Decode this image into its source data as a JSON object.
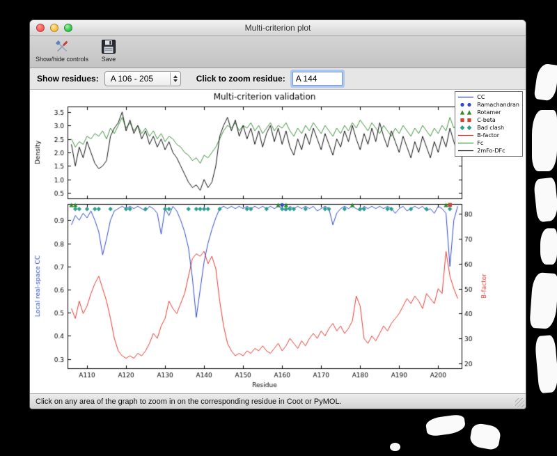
{
  "window": {
    "title": "Multi-criterion plot",
    "toolbar": {
      "show_hide_label": "Show/hide controls",
      "save_label": "Save"
    },
    "controls": {
      "show_residues_label": "Show residues:",
      "residue_range_value": "A 106 - 205",
      "zoom_residue_label": "Click to zoom residue:",
      "zoom_residue_value": "A 144"
    },
    "status_text": "Click on any area of the graph to zoom in on the corresponding residue in Coot or PyMOL."
  },
  "chart_data": {
    "type": "line",
    "title": "Multi-criterion validation",
    "xlabel": "Residue",
    "x_start": 106,
    "x_end": 205,
    "x_ticks": [
      110,
      120,
      130,
      140,
      150,
      160,
      170,
      180,
      190,
      200
    ],
    "x_tick_labels": [
      "A110",
      "A120",
      "A130",
      "A140",
      "A150",
      "A160",
      "A170",
      "A180",
      "A190",
      "A200"
    ],
    "top_plot": {
      "ylabel": "Density",
      "ylim": [
        0.3,
        3.7
      ],
      "yticks": [
        0.5,
        1.0,
        1.5,
        2.0,
        2.5,
        3.0,
        3.5
      ],
      "series": [
        {
          "name": "Fc",
          "color": "#3f8f3f",
          "values": [
            2.5,
            2.2,
            2.4,
            2.3,
            2.6,
            2.5,
            2.7,
            2.6,
            2.8,
            2.5,
            2.9,
            2.7,
            3.0,
            3.3,
            2.9,
            3.1,
            2.8,
            3.0,
            2.7,
            2.9,
            2.6,
            2.8,
            2.5,
            2.7,
            2.4,
            2.6,
            2.5,
            2.3,
            2.2,
            2.0,
            1.9,
            1.7,
            1.8,
            1.6,
            1.9,
            1.8,
            2.0,
            2.2,
            2.5,
            2.8,
            3.0,
            2.9,
            3.1,
            2.8,
            3.0,
            2.9,
            3.1,
            2.8,
            3.0,
            2.7,
            2.9,
            3.1,
            2.8,
            3.0,
            2.9,
            3.1,
            2.8,
            2.6,
            2.9,
            2.7,
            3.0,
            2.8,
            3.1,
            2.9,
            2.7,
            3.0,
            2.8,
            2.6,
            2.9,
            2.7,
            3.0,
            2.8,
            3.1,
            2.9,
            3.2,
            3.0,
            2.8,
            3.1,
            2.9,
            2.7,
            3.0,
            2.8,
            2.6,
            2.9,
            2.7,
            3.0,
            2.8,
            2.6,
            2.9,
            2.7,
            3.0,
            2.8,
            2.6,
            2.9,
            2.7,
            3.0,
            2.8,
            3.3,
            2.9,
            3.1
          ]
        },
        {
          "name": "2mFo-DFc",
          "color": "#111111",
          "values": [
            2.3,
            1.5,
            2.2,
            1.8,
            2.4,
            2.0,
            1.6,
            1.4,
            1.5,
            1.7,
            2.6,
            2.9,
            3.1,
            3.5,
            2.8,
            3.2,
            2.7,
            3.0,
            2.5,
            2.8,
            2.3,
            2.6,
            2.2,
            2.5,
            2.1,
            2.4,
            2.0,
            1.8,
            1.5,
            1.2,
            0.9,
            0.7,
            0.8,
            0.6,
            1.0,
            0.7,
            0.9,
            1.5,
            2.6,
            3.0,
            3.3,
            2.8,
            3.2,
            2.6,
            3.0,
            2.5,
            2.9,
            2.3,
            2.8,
            2.2,
            2.7,
            3.0,
            2.4,
            2.9,
            2.3,
            2.8,
            2.2,
            1.9,
            2.5,
            2.1,
            2.7,
            2.3,
            2.9,
            2.5,
            2.1,
            2.7,
            2.3,
            1.9,
            2.5,
            2.2,
            2.8,
            2.4,
            3.0,
            2.5,
            2.1,
            2.7,
            2.3,
            2.9,
            2.4,
            3.1,
            2.6,
            2.2,
            2.8,
            2.4,
            2.0,
            2.6,
            2.2,
            1.8,
            2.4,
            2.0,
            2.6,
            2.2,
            1.8,
            2.4,
            2.0,
            2.6,
            2.2,
            2.9,
            2.4,
            2.0
          ]
        }
      ]
    },
    "bottom_plot": {
      "ylabel_left": "Local real-space CC",
      "ylabel_right": "B-factor",
      "ylim_left": [
        0.26,
        0.97
      ],
      "yticks_left": [
        0.3,
        0.4,
        0.5,
        0.6,
        0.7,
        0.8,
        0.9
      ],
      "ylim_right": [
        18,
        84
      ],
      "yticks_right": [
        20,
        30,
        40,
        50,
        60,
        70,
        80
      ],
      "series": [
        {
          "name": "B-factor",
          "axis": "right",
          "color": "#dd3b33",
          "values": [
            42,
            38,
            45,
            40,
            43,
            48,
            52,
            55,
            50,
            45,
            38,
            30,
            25,
            23,
            22,
            23,
            22,
            24,
            23,
            25,
            28,
            32,
            30,
            35,
            38,
            45,
            42,
            40,
            44,
            48,
            55,
            62,
            64,
            63,
            65,
            60,
            63,
            58,
            45,
            35,
            28,
            25,
            23,
            24,
            23,
            25,
            24,
            26,
            25,
            27,
            25,
            24,
            26,
            28,
            25,
            27,
            30,
            28,
            26,
            29,
            27,
            30,
            32,
            30,
            33,
            31,
            34,
            36,
            33,
            35,
            32,
            34,
            37,
            47,
            43,
            30,
            28,
            31,
            29,
            32,
            35,
            33,
            36,
            38,
            40,
            43,
            46,
            44,
            47,
            45,
            42,
            48,
            46,
            44,
            50,
            48,
            65,
            55,
            50,
            46
          ]
        },
        {
          "name": "CC",
          "axis": "left",
          "color": "#2f49c3",
          "values": [
            0.88,
            0.92,
            0.9,
            0.93,
            0.91,
            0.94,
            0.9,
            0.85,
            0.75,
            0.82,
            0.9,
            0.94,
            0.95,
            0.96,
            0.95,
            0.96,
            0.95,
            0.96,
            0.95,
            0.94,
            0.96,
            0.95,
            0.93,
            0.84,
            0.95,
            0.92,
            0.96,
            0.94,
            0.9,
            0.85,
            0.78,
            0.65,
            0.48,
            0.6,
            0.72,
            0.8,
            0.86,
            0.91,
            0.95,
            0.96,
            0.95,
            0.96,
            0.95,
            0.96,
            0.95,
            0.96,
            0.95,
            0.96,
            0.95,
            0.96,
            0.95,
            0.96,
            0.95,
            0.96,
            0.95,
            0.94,
            0.96,
            0.95,
            0.96,
            0.95,
            0.96,
            0.95,
            0.96,
            0.94,
            0.95,
            0.96,
            0.95,
            0.88,
            0.93,
            0.95,
            0.96,
            0.95,
            0.96,
            0.95,
            0.94,
            0.96,
            0.95,
            0.96,
            0.95,
            0.96,
            0.95,
            0.96,
            0.95,
            0.93,
            0.95,
            0.96,
            0.94,
            0.95,
            0.96,
            0.95,
            0.96,
            0.94,
            0.95,
            0.93,
            0.96,
            0.95,
            0.93,
            0.7,
            0.9,
            0.96
          ]
        }
      ],
      "markers": {
        "bad_clash": {
          "name": "Bad clash",
          "shape": "diamond",
          "color": "#2f9e8e",
          "y": 0.948,
          "residues": [
            107,
            108,
            110,
            112,
            113,
            116,
            120,
            121,
            125,
            130,
            131,
            136,
            138,
            139,
            140,
            141,
            144,
            151,
            152,
            156,
            160,
            161,
            162,
            163,
            166,
            171,
            172,
            176,
            180,
            181,
            187,
            188,
            193,
            197,
            203
          ]
        },
        "rotamer": {
          "name": "Rotamer",
          "shape": "triangle",
          "color": "#2e8b2e",
          "y": 0.966,
          "residues": [
            106,
            107,
            159,
            161,
            178,
            202
          ]
        },
        "cbeta": {
          "name": "C-beta",
          "shape": "square",
          "color": "#cc4433",
          "y": 0.966,
          "residues": [
            203
          ]
        },
        "ramachandran": {
          "name": "Ramachandran",
          "shape": "circle",
          "color": "#2f49c3",
          "y": 0.966,
          "residues": [
            160
          ]
        }
      }
    },
    "legend": [
      {
        "label": "CC",
        "type": "line",
        "color": "#2f49c3"
      },
      {
        "label": "Ramachandran",
        "type": "circle",
        "color": "#2f49c3"
      },
      {
        "label": "Rotamer",
        "type": "triangle",
        "color": "#2e8b2e"
      },
      {
        "label": "C-beta",
        "type": "square",
        "color": "#cc4433"
      },
      {
        "label": "Bad clash",
        "type": "diamond",
        "color": "#2f9e8e"
      },
      {
        "label": "B-factor",
        "type": "line",
        "color": "#dd3b33"
      },
      {
        "label": "Fc",
        "type": "line",
        "color": "#3f8f3f"
      },
      {
        "label": "2mFo-DFc",
        "type": "line",
        "color": "#111111"
      }
    ]
  }
}
